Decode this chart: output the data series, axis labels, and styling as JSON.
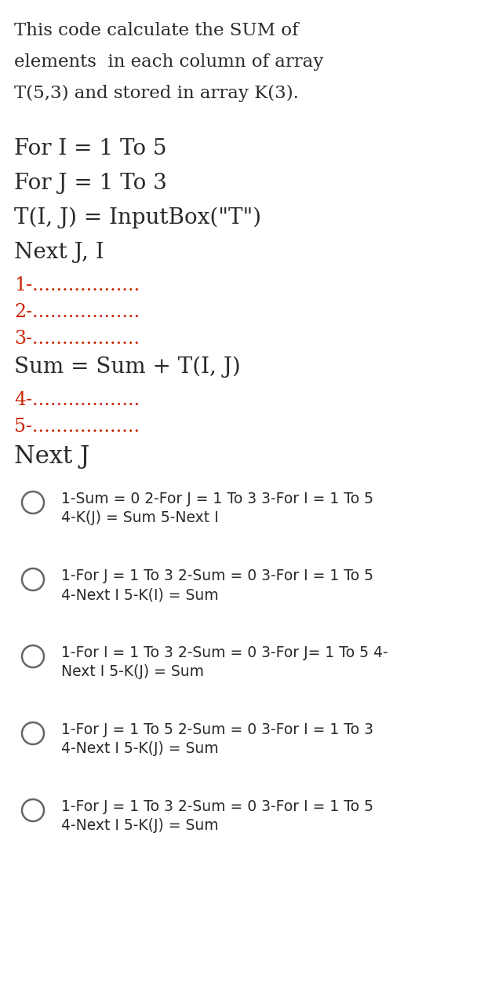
{
  "bg_color": "#ffffff",
  "text_color_black": "#2a2a2a",
  "text_color_red": "#cc2200",
  "intro_lines": [
    "This code calculate the SUM of",
    "elements  in each column of array",
    "T(5,3) and stored in array K(3)."
  ],
  "code_lines": [
    "For I = 1 To 5",
    "For J = 1 To 3",
    "T(I, J) = InputBox(\"T\")",
    "Next J, I"
  ],
  "blanks_before": [
    "1-..................",
    "2-..................",
    "3-.................."
  ],
  "middle_line": "Sum = Sum + T(I, J)",
  "blanks_after": [
    "4-..................",
    "5-.................."
  ],
  "next_j": "Next J",
  "options": [
    {
      "line1": "1-Sum = 0 2-For J = 1 To 3 3-For I = 1 To 5",
      "line2": "4-K(J) = Sum 5-Next I"
    },
    {
      "line1": "1-For J = 1 To 3 2-Sum = 0 3-For I = 1 To 5",
      "line2": "4-Next I 5-K(I) = Sum"
    },
    {
      "line1": "1-For I = 1 To 3 2-Sum = 0 3-For J= 1 To 5 4-",
      "line2": "Next I 5-K(J) = Sum"
    },
    {
      "line1": "1-For J = 1 To 5 2-Sum = 0 3-For I = 1 To 3",
      "line2": "4-Next I 5-K(J) = Sum"
    },
    {
      "line1": "1-For J = 1 To 3 2-Sum = 0 3-For I = 1 To 5",
      "line2": "4-Next I 5-K(J) = Sum"
    }
  ],
  "fig_width": 6.31,
  "fig_height": 12.8,
  "dpi": 100
}
